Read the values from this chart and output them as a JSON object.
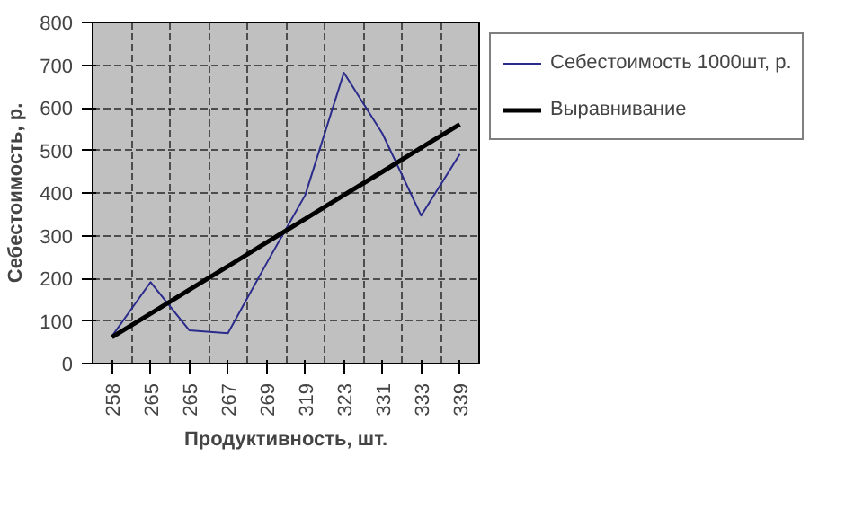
{
  "chart_data": {
    "type": "line",
    "xlabel": "Продуктивность, шт.",
    "ylabel": "Себестоимость, р.",
    "categories": [
      "258",
      "265",
      "265",
      "267",
      "269",
      "319",
      "323",
      "331",
      "333",
      "339"
    ],
    "ylim": [
      0,
      800
    ],
    "yticks": [
      0,
      100,
      200,
      300,
      400,
      500,
      600,
      700,
      800
    ],
    "grid": true,
    "legend": "right",
    "marker": "none",
    "series": [
      {
        "name": "Себестоимость 1000шт, р.",
        "color": "#2b2b8c",
        "values": [
          64,
          191,
          78,
          71,
          235,
          395,
          682,
          539,
          347,
          491
        ]
      },
      {
        "name": "Выравнивание",
        "color": "#000000",
        "values": [
          62,
          117,
          173,
          228,
          284,
          339,
          395,
          450,
          506,
          561
        ]
      }
    ]
  }
}
